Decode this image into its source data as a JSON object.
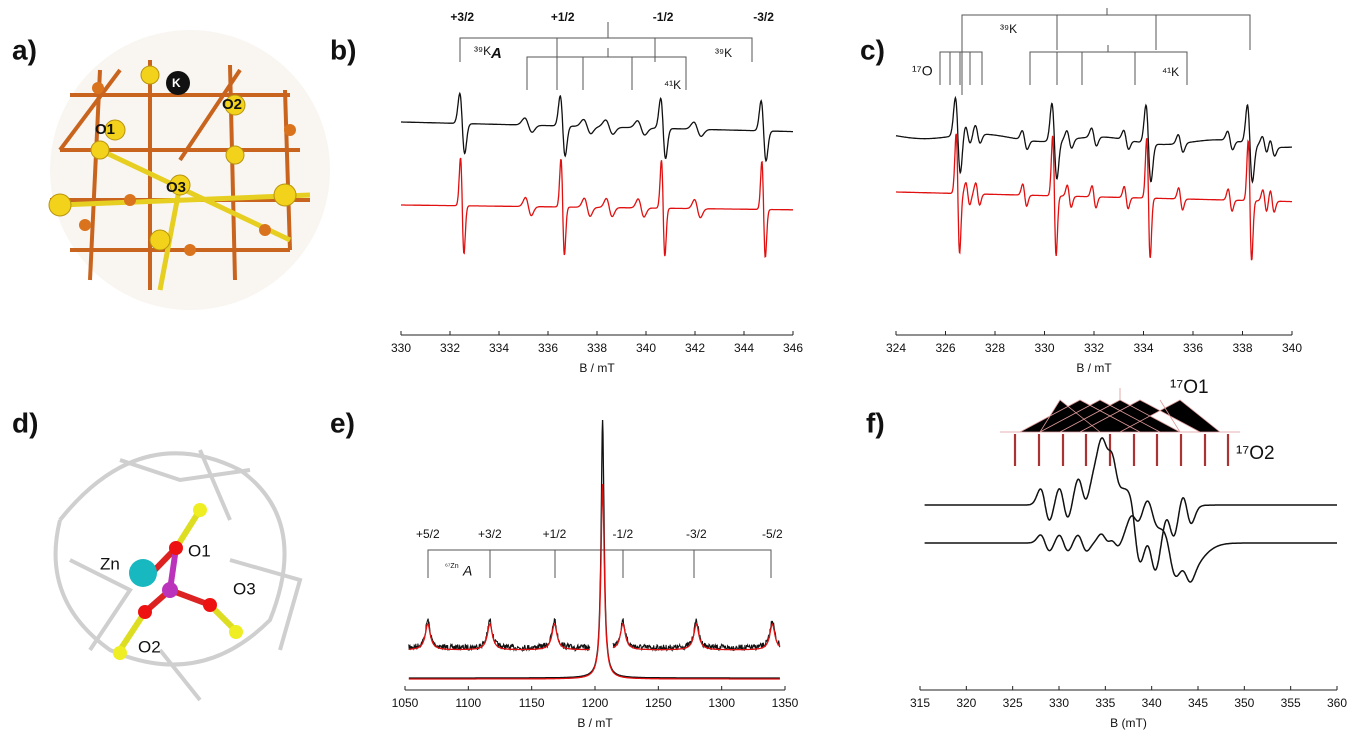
{
  "figure": {
    "a": {
      "label": "a)",
      "atoms": [
        "K",
        "O1",
        "O2",
        "O3"
      ]
    },
    "b": {
      "label": "b)",
      "xlabel": "B / mT",
      "xlim": [
        330,
        346
      ],
      "xticks": [
        330,
        332,
        334,
        336,
        338,
        340,
        342,
        344,
        346
      ],
      "transitions": [
        "+3/2",
        "+1/2",
        "-1/2",
        "-3/2"
      ],
      "peaks": [
        332.5,
        336.6,
        340.7,
        344.8
      ],
      "minor_peaks": [
        335.2,
        337.6,
        338.5,
        339.8,
        342.1
      ],
      "annotations": [
        "³⁹K",
        "A",
        "⁴¹K",
        "³⁹K"
      ]
    },
    "c": {
      "label": "c)",
      "xlabel": "B / mT",
      "xlim": [
        324,
        340
      ],
      "xticks": [
        324,
        326,
        328,
        330,
        332,
        334,
        336,
        338,
        340
      ],
      "peaks": [
        326.5,
        330.4,
        334.2,
        338.3
      ],
      "minor_peaks": [
        326.9,
        327.3,
        329.2,
        331.0,
        332.0,
        333.3,
        335.5,
        337.5,
        338.9,
        339.2
      ],
      "annotations": [
        "¹⁷O",
        "³⁹K",
        "⁴¹K"
      ]
    },
    "d": {
      "label": "d)",
      "atoms": [
        "Zn",
        "O1",
        "O2",
        "O3"
      ]
    },
    "e": {
      "label": "e)",
      "xlabel": "B / mT",
      "xlim": [
        1050,
        1350
      ],
      "xticks": [
        1050,
        1100,
        1150,
        1200,
        1250,
        1300,
        1350
      ],
      "transitions": [
        "+5/2",
        "+3/2",
        "+1/2",
        "-1/2",
        "-3/2",
        "-5/2"
      ],
      "peaks": [
        1068,
        1117,
        1168,
        1222,
        1280,
        1340
      ],
      "central_peak": 1206,
      "annotations": [
        "⁶⁷Zn",
        "A"
      ]
    },
    "f": {
      "label": "f)",
      "xlabel": "B (mT)",
      "xlim": [
        315,
        360
      ],
      "xticks": [
        315,
        320,
        325,
        330,
        335,
        340,
        345,
        350,
        355,
        360
      ],
      "peaks": [
        328.5,
        330.5,
        332.5,
        335,
        336,
        338.2,
        340,
        342,
        343.8
      ],
      "annotations": [
        "¹⁷O1",
        "¹⁷O2"
      ]
    }
  }
}
